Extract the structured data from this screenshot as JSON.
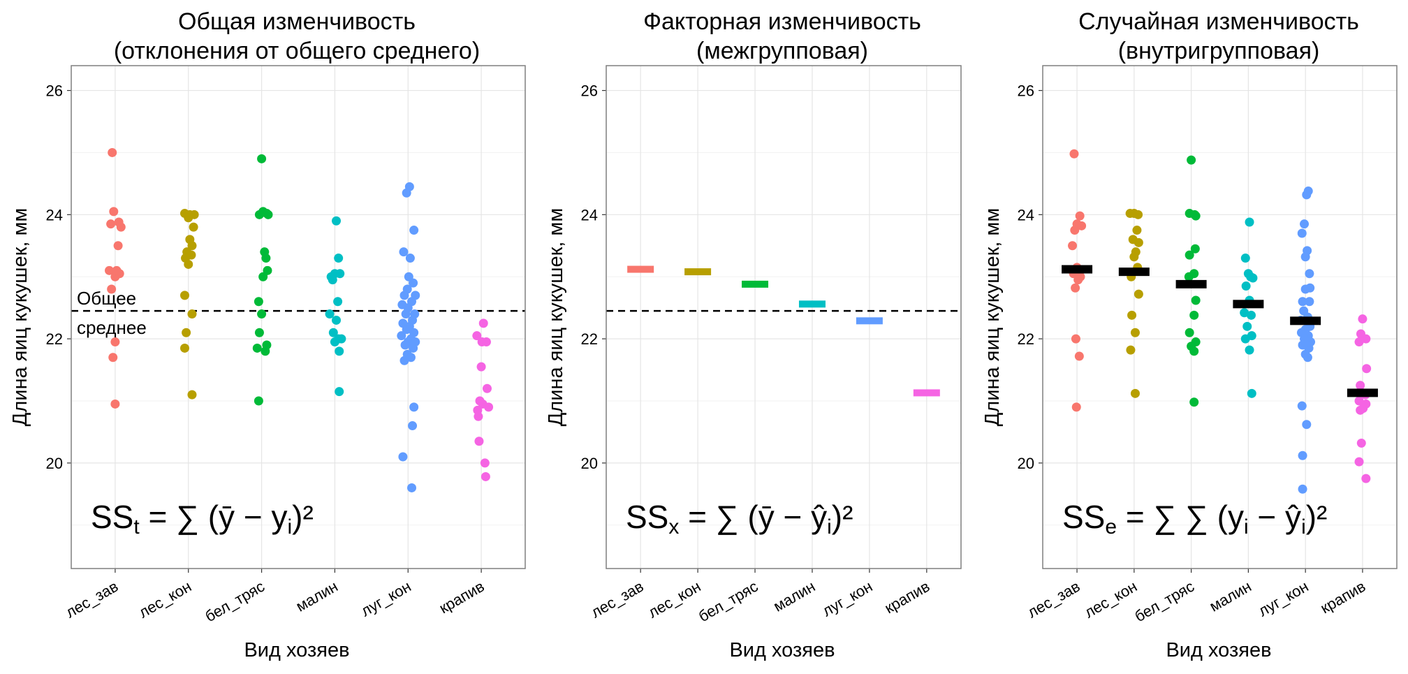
{
  "chart_data": [
    {
      "type": "scatter",
      "title_lines": [
        "Общая изменчивость",
        "(отклонения от общего среднего)"
      ],
      "xlabel": "Вид хозяев",
      "ylabel": "Длина яиц кукушек, мм",
      "ylim": [
        18.3,
        26.4
      ],
      "yticks": [
        20,
        22,
        24,
        26
      ],
      "categories": [
        "лес_зав",
        "лес_кон",
        "бел_тряс",
        "малин",
        "луг_кон",
        "крапив"
      ],
      "grid": true,
      "grand_mean": 22.45,
      "annotation_lines": [
        "Общее",
        "среднее"
      ],
      "formula": {
        "lhs": "SS",
        "sub": "t",
        "expr": "= ∑ (ȳ − y",
        "expr_sub": "i",
        "expr_end": ")²"
      },
      "series": [
        {
          "name": "лес_зав",
          "color": "#F8766D",
          "points": [
            [
              -0.04,
              25.0
            ],
            [
              0.0,
              21.95
            ],
            [
              -0.03,
              21.7
            ],
            [
              0.0,
              20.95
            ],
            [
              -0.02,
              24.05
            ],
            [
              0.05,
              23.88
            ],
            [
              0.08,
              23.8
            ],
            [
              -0.06,
              23.85
            ],
            [
              0.04,
              23.5
            ],
            [
              -0.08,
              23.1
            ],
            [
              0.0,
              23.0
            ],
            [
              0.06,
              23.05
            ],
            [
              0.02,
              23.1
            ],
            [
              -0.05,
              22.8
            ]
          ]
        },
        {
          "name": "лес_кон",
          "color": "#B79F00",
          "points": [
            [
              -0.05,
              24.02
            ],
            [
              0.02,
              24.0
            ],
            [
              0.08,
              24.0
            ],
            [
              0.0,
              23.95
            ],
            [
              0.07,
              23.8
            ],
            [
              0.02,
              23.6
            ],
            [
              0.05,
              23.5
            ],
            [
              -0.02,
              23.4
            ],
            [
              0.04,
              23.35
            ],
            [
              -0.04,
              23.3
            ],
            [
              0.0,
              23.2
            ],
            [
              -0.05,
              22.7
            ],
            [
              0.05,
              22.4
            ],
            [
              -0.03,
              22.1
            ],
            [
              -0.05,
              21.85
            ],
            [
              0.05,
              21.1
            ]
          ]
        },
        {
          "name": "бел_тряс",
          "color": "#00BA38",
          "points": [
            [
              0.0,
              24.9
            ],
            [
              0.02,
              24.05
            ],
            [
              0.07,
              24.02
            ],
            [
              -0.03,
              24.0
            ],
            [
              0.09,
              24.0
            ],
            [
              0.04,
              23.4
            ],
            [
              0.06,
              23.3
            ],
            [
              0.08,
              23.1
            ],
            [
              0.02,
              23.0
            ],
            [
              -0.04,
              22.6
            ],
            [
              0.0,
              22.4
            ],
            [
              -0.03,
              22.1
            ],
            [
              0.07,
              21.9
            ],
            [
              -0.06,
              21.85
            ],
            [
              0.05,
              21.8
            ],
            [
              -0.04,
              21.0
            ]
          ]
        },
        {
          "name": "малин",
          "color": "#00BFC4",
          "points": [
            [
              0.02,
              23.9
            ],
            [
              0.05,
              23.3
            ],
            [
              -0.05,
              23.0
            ],
            [
              0.0,
              23.05
            ],
            [
              0.07,
              23.05
            ],
            [
              -0.03,
              22.95
            ],
            [
              0.04,
              22.6
            ],
            [
              -0.07,
              22.4
            ],
            [
              0.02,
              22.3
            ],
            [
              -0.02,
              22.1
            ],
            [
              0.05,
              22.0
            ],
            [
              0.0,
              21.95
            ],
            [
              0.09,
              22.0
            ],
            [
              0.06,
              21.8
            ],
            [
              0.06,
              21.15
            ]
          ]
        },
        {
          "name": "луг_кон",
          "color": "#619CFF",
          "points": [
            [
              0.02,
              24.45
            ],
            [
              -0.02,
              24.35
            ],
            [
              0.08,
              23.75
            ],
            [
              -0.06,
              23.4
            ],
            [
              0.03,
              23.3
            ],
            [
              0.01,
              23.0
            ],
            [
              0.07,
              22.9
            ],
            [
              -0.01,
              22.8
            ],
            [
              0.1,
              22.7
            ],
            [
              -0.05,
              22.7
            ],
            [
              0.05,
              22.6
            ],
            [
              -0.08,
              22.55
            ],
            [
              0.0,
              22.5
            ],
            [
              0.09,
              22.4
            ],
            [
              -0.03,
              22.4
            ],
            [
              0.06,
              22.3
            ],
            [
              -0.07,
              22.25
            ],
            [
              0.02,
              22.2
            ],
            [
              -0.02,
              22.15
            ],
            [
              0.08,
              22.1
            ],
            [
              -0.09,
              22.05
            ],
            [
              0.04,
              22.0
            ],
            [
              0.0,
              21.95
            ],
            [
              0.1,
              21.95
            ],
            [
              -0.04,
              21.9
            ],
            [
              0.07,
              21.85
            ],
            [
              -0.01,
              21.75
            ],
            [
              0.04,
              21.7
            ],
            [
              -0.05,
              21.65
            ],
            [
              0.08,
              20.9
            ],
            [
              0.06,
              20.6
            ],
            [
              -0.07,
              20.1
            ],
            [
              0.05,
              19.6
            ]
          ]
        },
        {
          "name": "крапив",
          "color": "#F564E3",
          "points": [
            [
              0.03,
              22.25
            ],
            [
              -0.06,
              22.05
            ],
            [
              0.01,
              21.95
            ],
            [
              0.07,
              21.95
            ],
            [
              0.0,
              21.55
            ],
            [
              0.08,
              21.2
            ],
            [
              -0.02,
              21.0
            ],
            [
              0.02,
              20.95
            ],
            [
              0.1,
              20.9
            ],
            [
              -0.05,
              20.85
            ],
            [
              -0.04,
              20.75
            ],
            [
              -0.03,
              20.35
            ],
            [
              0.05,
              20.0
            ],
            [
              0.06,
              19.78
            ]
          ]
        }
      ]
    },
    {
      "type": "scatter",
      "title_lines": [
        "Факторная изменчивость",
        "(межгрупповая)"
      ],
      "xlabel": "Вид хозяев",
      "ylabel": "Длина яиц кукушек, мм",
      "ylim": [
        18.3,
        26.4
      ],
      "yticks": [
        20,
        22,
        24,
        26
      ],
      "categories": [
        "лес_зав",
        "лес_кон",
        "бел_тряс",
        "малин",
        "луг_кон",
        "крапив"
      ],
      "grid": true,
      "grand_mean": 22.45,
      "formula": {
        "lhs": "SS",
        "sub": "x",
        "expr": "= ∑ (ȳ − ŷ",
        "expr_sub": "i",
        "expr_end": ")²"
      },
      "group_means": [
        {
          "name": "лес_зав",
          "value": 23.12,
          "color": "#F8766D"
        },
        {
          "name": "лес_кон",
          "value": 23.08,
          "color": "#B79F00"
        },
        {
          "name": "бел_тряс",
          "value": 22.88,
          "color": "#00BA38"
        },
        {
          "name": "малин",
          "value": 22.56,
          "color": "#00BFC4"
        },
        {
          "name": "луг_кон",
          "value": 22.29,
          "color": "#619CFF"
        },
        {
          "name": "крапив",
          "value": 21.13,
          "color": "#F564E3"
        }
      ]
    },
    {
      "type": "scatter",
      "title_lines": [
        "Случайная изменчивость",
        "(внутригрупповая)"
      ],
      "xlabel": "Вид хозяев",
      "ylabel": "Длина яиц кукушек, мм",
      "ylim": [
        18.3,
        26.4
      ],
      "yticks": [
        20,
        22,
        24,
        26
      ],
      "categories": [
        "лес_зав",
        "лес_кон",
        "бел_тряс",
        "малин",
        "луг_кон",
        "крапив"
      ],
      "grid": true,
      "mean_bar_color": "#000000",
      "formula": {
        "lhs": "SS",
        "sub": "e",
        "expr": "= ∑ ∑ (y",
        "expr_sub_mid": "i",
        "expr_mid": " − ŷ",
        "expr_sub": "i",
        "expr_end": ")²"
      },
      "group_means": [
        {
          "name": "лес_зав",
          "value": 23.12
        },
        {
          "name": "лес_кон",
          "value": 23.08
        },
        {
          "name": "бел_тряс",
          "value": 22.88
        },
        {
          "name": "малин",
          "value": 22.56
        },
        {
          "name": "луг_кон",
          "value": 22.29
        },
        {
          "name": "крапив",
          "value": 21.13
        }
      ],
      "series": [
        {
          "name": "лес_зав",
          "color": "#F8766D",
          "points": [
            [
              -0.05,
              24.98
            ],
            [
              0.05,
              23.98
            ],
            [
              0.08,
              23.82
            ],
            [
              -0.04,
              23.75
            ],
            [
              0.0,
              23.85
            ],
            [
              -0.08,
              23.5
            ],
            [
              0.0,
              23.15
            ],
            [
              -0.06,
              23.05
            ],
            [
              0.06,
              23.0
            ],
            [
              0.02,
              22.95
            ],
            [
              -0.03,
              22.82
            ],
            [
              -0.02,
              22.0
            ],
            [
              0.04,
              21.72
            ],
            [
              -0.01,
              20.9
            ]
          ]
        },
        {
          "name": "лес_кон",
          "color": "#B79F00",
          "points": [
            [
              -0.07,
              24.02
            ],
            [
              0.0,
              24.02
            ],
            [
              0.07,
              24.0
            ],
            [
              0.05,
              23.75
            ],
            [
              -0.02,
              23.6
            ],
            [
              0.08,
              23.55
            ],
            [
              0.03,
              23.4
            ],
            [
              0.0,
              23.32
            ],
            [
              0.06,
              23.15
            ],
            [
              -0.05,
              23.0
            ],
            [
              0.08,
              22.72
            ],
            [
              -0.04,
              22.38
            ],
            [
              0.02,
              22.1
            ],
            [
              -0.06,
              21.82
            ],
            [
              0.02,
              21.12
            ]
          ]
        },
        {
          "name": "бел_тряс",
          "color": "#00BA38",
          "points": [
            [
              0.0,
              24.88
            ],
            [
              -0.03,
              24.02
            ],
            [
              0.06,
              24.0
            ],
            [
              0.08,
              23.98
            ],
            [
              0.07,
              23.45
            ],
            [
              -0.03,
              23.35
            ],
            [
              0.05,
              23.05
            ],
            [
              -0.04,
              23.0
            ],
            [
              0.08,
              22.62
            ],
            [
              0.05,
              22.38
            ],
            [
              -0.03,
              22.1
            ],
            [
              0.08,
              21.95
            ],
            [
              0.0,
              21.88
            ],
            [
              0.05,
              21.8
            ],
            [
              0.05,
              20.98
            ]
          ]
        },
        {
          "name": "малин",
          "color": "#00BFC4",
          "points": [
            [
              0.02,
              23.88
            ],
            [
              -0.05,
              23.3
            ],
            [
              0.0,
              23.05
            ],
            [
              0.04,
              23.0
            ],
            [
              0.08,
              22.98
            ],
            [
              -0.04,
              22.85
            ],
            [
              0.02,
              22.62
            ],
            [
              -0.07,
              22.42
            ],
            [
              0.05,
              22.38
            ],
            [
              -0.02,
              22.2
            ],
            [
              0.06,
              22.05
            ],
            [
              -0.05,
              22.0
            ],
            [
              0.02,
              21.82
            ],
            [
              0.06,
              21.12
            ]
          ]
        },
        {
          "name": "луг_кон",
          "color": "#619CFF",
          "points": [
            [
              0.05,
              24.38
            ],
            [
              0.02,
              24.32
            ],
            [
              -0.02,
              23.85
            ],
            [
              -0.06,
              23.7
            ],
            [
              0.03,
              23.42
            ],
            [
              0.0,
              23.32
            ],
            [
              0.07,
              23.05
            ],
            [
              0.08,
              22.82
            ],
            [
              0.0,
              22.8
            ],
            [
              -0.05,
              22.6
            ],
            [
              0.07,
              22.6
            ],
            [
              -0.03,
              22.45
            ],
            [
              0.04,
              22.35
            ],
            [
              -0.08,
              22.3
            ],
            [
              0.08,
              22.2
            ],
            [
              0.0,
              22.15
            ],
            [
              -0.07,
              22.1
            ],
            [
              0.05,
              22.05
            ],
            [
              -0.02,
              22.0
            ],
            [
              0.09,
              21.95
            ],
            [
              0.02,
              21.9
            ],
            [
              -0.05,
              21.9
            ],
            [
              0.06,
              21.85
            ],
            [
              0.0,
              21.75
            ],
            [
              0.04,
              21.7
            ],
            [
              -0.04,
              21.9
            ],
            [
              -0.06,
              20.92
            ],
            [
              0.02,
              20.62
            ],
            [
              -0.05,
              20.12
            ],
            [
              -0.05,
              19.58
            ]
          ]
        },
        {
          "name": "крапив",
          "color": "#F564E3",
          "points": [
            [
              0.0,
              22.32
            ],
            [
              -0.03,
              22.08
            ],
            [
              0.06,
              22.0
            ],
            [
              -0.06,
              21.95
            ],
            [
              0.07,
              21.52
            ],
            [
              -0.04,
              21.25
            ],
            [
              0.05,
              21.1
            ],
            [
              -0.06,
              21.0
            ],
            [
              0.06,
              20.95
            ],
            [
              0.01,
              20.88
            ],
            [
              -0.04,
              20.85
            ],
            [
              -0.02,
              20.32
            ],
            [
              -0.06,
              20.02
            ],
            [
              0.06,
              19.75
            ]
          ]
        }
      ]
    }
  ]
}
